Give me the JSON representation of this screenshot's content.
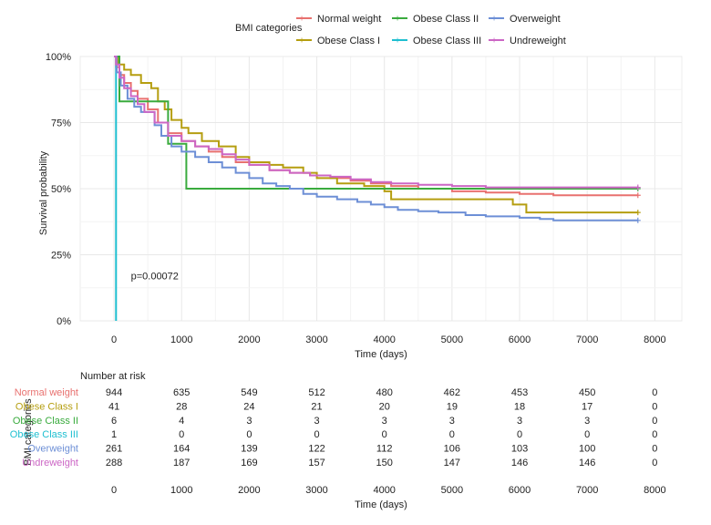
{
  "chart_data": {
    "type": "line",
    "subtype": "kaplan-meier",
    "legend": {
      "title": "BMI categories",
      "placement": "top",
      "entries": [
        "Normal weight",
        "Obese Class II",
        "Overweight",
        "Obese Class I",
        "Obese Class III",
        "Undreweight"
      ]
    },
    "ylabel": "Survival probability",
    "xlabel": "Time (days)",
    "xlim": [
      -500,
      8400
    ],
    "ylim": [
      0,
      1
    ],
    "x_ticks": [
      0,
      1000,
      2000,
      3000,
      4000,
      5000,
      6000,
      7000,
      8000
    ],
    "x_tick_labels": [
      "0",
      "1000",
      "2000",
      "3000",
      "4000",
      "5000",
      "6000",
      "7000",
      "8000"
    ],
    "y_ticks": [
      0,
      0.25,
      0.5,
      0.75,
      1
    ],
    "y_tick_labels": [
      "0%",
      "25%",
      "50%",
      "75%",
      "100%"
    ],
    "annotation": "p=0.00072",
    "annotation_at": [
      250,
      0.17
    ],
    "series": [
      {
        "name": "Normal weight",
        "color": "#e8716f",
        "points": [
          [
            0,
            1
          ],
          [
            30,
            0.96
          ],
          [
            80,
            0.93
          ],
          [
            150,
            0.9
          ],
          [
            250,
            0.87
          ],
          [
            350,
            0.84
          ],
          [
            500,
            0.8
          ],
          [
            650,
            0.75
          ],
          [
            800,
            0.71
          ],
          [
            1000,
            0.68
          ],
          [
            1200,
            0.66
          ],
          [
            1400,
            0.64
          ],
          [
            1600,
            0.62
          ],
          [
            1800,
            0.6
          ],
          [
            2000,
            0.59
          ],
          [
            2300,
            0.57
          ],
          [
            2600,
            0.56
          ],
          [
            2900,
            0.55
          ],
          [
            3200,
            0.54
          ],
          [
            3500,
            0.53
          ],
          [
            3800,
            0.52
          ],
          [
            4100,
            0.51
          ],
          [
            4500,
            0.5
          ],
          [
            5000,
            0.49
          ],
          [
            5500,
            0.485
          ],
          [
            6000,
            0.48
          ],
          [
            6500,
            0.475
          ],
          [
            7000,
            0.475
          ],
          [
            7750,
            0.475
          ]
        ]
      },
      {
        "name": "Obese Class I",
        "color": "#b59e10",
        "points": [
          [
            0,
            1
          ],
          [
            60,
            0.97
          ],
          [
            150,
            0.95
          ],
          [
            250,
            0.93
          ],
          [
            400,
            0.9
          ],
          [
            550,
            0.88
          ],
          [
            650,
            0.83
          ],
          [
            750,
            0.8
          ],
          [
            850,
            0.76
          ],
          [
            1000,
            0.73
          ],
          [
            1100,
            0.71
          ],
          [
            1300,
            0.68
          ],
          [
            1550,
            0.66
          ],
          [
            1800,
            0.62
          ],
          [
            2000,
            0.6
          ],
          [
            2300,
            0.59
          ],
          [
            2500,
            0.58
          ],
          [
            2800,
            0.56
          ],
          [
            3000,
            0.54
          ],
          [
            3300,
            0.52
          ],
          [
            3700,
            0.51
          ],
          [
            4000,
            0.49
          ],
          [
            4100,
            0.46
          ],
          [
            5100,
            0.46
          ],
          [
            5500,
            0.46
          ],
          [
            5900,
            0.44
          ],
          [
            6000,
            0.44
          ],
          [
            6100,
            0.41
          ],
          [
            6500,
            0.41
          ],
          [
            7750,
            0.41
          ]
        ]
      },
      {
        "name": "Obese Class II",
        "color": "#3aab3e",
        "points": [
          [
            0,
            1
          ],
          [
            60,
            1
          ],
          [
            80,
            0.83
          ],
          [
            780,
            0.83
          ],
          [
            800,
            0.67
          ],
          [
            1050,
            0.67
          ],
          [
            1070,
            0.5
          ],
          [
            7750,
            0.5
          ]
        ]
      },
      {
        "name": "Obese Class III",
        "color": "#1ebfd0",
        "points": [
          [
            0,
            1
          ],
          [
            30,
            1
          ],
          [
            30,
            0
          ]
        ]
      },
      {
        "name": "Overweight",
        "color": "#6d8fd6",
        "points": [
          [
            0,
            1
          ],
          [
            40,
            0.94
          ],
          [
            100,
            0.89
          ],
          [
            200,
            0.84
          ],
          [
            300,
            0.81
          ],
          [
            400,
            0.79
          ],
          [
            600,
            0.74
          ],
          [
            700,
            0.7
          ],
          [
            850,
            0.66
          ],
          [
            1000,
            0.64
          ],
          [
            1200,
            0.62
          ],
          [
            1400,
            0.6
          ],
          [
            1600,
            0.58
          ],
          [
            1800,
            0.56
          ],
          [
            2000,
            0.54
          ],
          [
            2200,
            0.52
          ],
          [
            2400,
            0.51
          ],
          [
            2600,
            0.5
          ],
          [
            2800,
            0.48
          ],
          [
            3000,
            0.47
          ],
          [
            3300,
            0.46
          ],
          [
            3600,
            0.45
          ],
          [
            3800,
            0.44
          ],
          [
            4000,
            0.43
          ],
          [
            4200,
            0.42
          ],
          [
            4500,
            0.415
          ],
          [
            4800,
            0.41
          ],
          [
            5200,
            0.4
          ],
          [
            5500,
            0.395
          ],
          [
            6000,
            0.39
          ],
          [
            6300,
            0.385
          ],
          [
            6500,
            0.38
          ],
          [
            7000,
            0.38
          ],
          [
            7750,
            0.38
          ]
        ]
      },
      {
        "name": "Undreweight",
        "color": "#cc66c5",
        "points": [
          [
            0,
            1
          ],
          [
            30,
            0.97
          ],
          [
            80,
            0.92
          ],
          [
            150,
            0.88
          ],
          [
            250,
            0.85
          ],
          [
            350,
            0.82
          ],
          [
            450,
            0.79
          ],
          [
            600,
            0.75
          ],
          [
            800,
            0.7
          ],
          [
            1000,
            0.68
          ],
          [
            1200,
            0.66
          ],
          [
            1400,
            0.65
          ],
          [
            1600,
            0.63
          ],
          [
            1800,
            0.61
          ],
          [
            2000,
            0.59
          ],
          [
            2300,
            0.57
          ],
          [
            2600,
            0.56
          ],
          [
            2900,
            0.55
          ],
          [
            3200,
            0.545
          ],
          [
            3500,
            0.535
          ],
          [
            3800,
            0.525
          ],
          [
            4100,
            0.52
          ],
          [
            4500,
            0.515
          ],
          [
            5000,
            0.51
          ],
          [
            5500,
            0.505
          ],
          [
            6000,
            0.505
          ],
          [
            6500,
            0.505
          ],
          [
            7000,
            0.505
          ],
          [
            7750,
            0.505
          ]
        ]
      }
    ],
    "risk_table": {
      "title": "Number at risk",
      "ylabel": "BMI categories",
      "xlabel": "Time (days)",
      "times": [
        0,
        1000,
        2000,
        3000,
        4000,
        5000,
        6000,
        7000,
        8000
      ],
      "x_tick_labels": [
        "0",
        "1000",
        "2000",
        "3000",
        "4000",
        "5000",
        "6000",
        "7000",
        "8000"
      ],
      "rows": [
        {
          "name": "Normal weight",
          "color": "#e8716f",
          "values": [
            944,
            635,
            549,
            512,
            480,
            462,
            453,
            450,
            0
          ]
        },
        {
          "name": "Obese Class I",
          "color": "#b59e10",
          "values": [
            41,
            28,
            24,
            21,
            20,
            19,
            18,
            17,
            0
          ]
        },
        {
          "name": "Obese Class II",
          "color": "#3aab3e",
          "values": [
            6,
            4,
            3,
            3,
            3,
            3,
            3,
            3,
            0
          ]
        },
        {
          "name": "Obese Class III",
          "color": "#1ebfd0",
          "values": [
            1,
            0,
            0,
            0,
            0,
            0,
            0,
            0,
            0
          ]
        },
        {
          "name": "Overweight",
          "color": "#6d8fd6",
          "values": [
            261,
            164,
            139,
            122,
            112,
            106,
            103,
            100,
            0
          ]
        },
        {
          "name": "Undreweight",
          "color": "#cc66c5",
          "values": [
            288,
            187,
            169,
            157,
            150,
            147,
            146,
            146,
            0
          ]
        }
      ]
    }
  }
}
